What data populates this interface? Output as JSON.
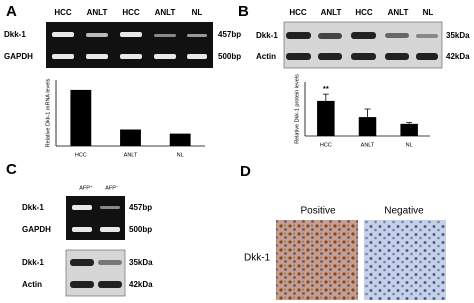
{
  "chart_data": [
    {
      "type": "bar",
      "ylabel": "Relative Dkk-1 mRNA levels",
      "categories": [
        "HCC",
        "ANLT",
        "NL"
      ],
      "values": [
        3.4,
        1.0,
        0.75
      ],
      "color": "#000000",
      "ylim": [
        0,
        4
      ]
    },
    {
      "type": "bar",
      "ylabel": "Relative Dkk-1 protein levels",
      "categories": [
        "HCC",
        "ANLT",
        "NL"
      ],
      "values": [
        1.3,
        0.7,
        0.45
      ],
      "errors": [
        0.25,
        0.3,
        0.05
      ],
      "annotation": "**",
      "color": "#000000",
      "ylim": [
        0,
        2
      ]
    }
  ],
  "panels": {
    "A": {
      "letter": "A",
      "lanes": [
        "HCC",
        "ANLT",
        "HCC",
        "ANLT",
        "NL"
      ],
      "rows": [
        {
          "label": "Dkk-1",
          "size": "457bp"
        },
        {
          "label": "GAPDH",
          "size": "500bp"
        }
      ]
    },
    "B": {
      "letter": "B",
      "lanes": [
        "HCC",
        "ANLT",
        "HCC",
        "ANLT",
        "NL"
      ],
      "rows": [
        {
          "label": "Dkk-1",
          "size": "35kDa"
        },
        {
          "label": "Actin",
          "size": "42kDa"
        }
      ]
    },
    "C": {
      "letter": "C",
      "lanes": [
        "AFP⁺",
        "AFP⁻"
      ],
      "rows": [
        {
          "label": "Dkk-1",
          "size": "457bp"
        },
        {
          "label": "GAPDH",
          "size": "500bp"
        },
        {
          "label": "Dkk-1",
          "size": "35kDa"
        },
        {
          "label": "Actin",
          "size": "42kDa"
        }
      ]
    },
    "D": {
      "letter": "D",
      "columns": [
        "Positive",
        "Negative"
      ],
      "row_label": "Dkk-1"
    }
  }
}
